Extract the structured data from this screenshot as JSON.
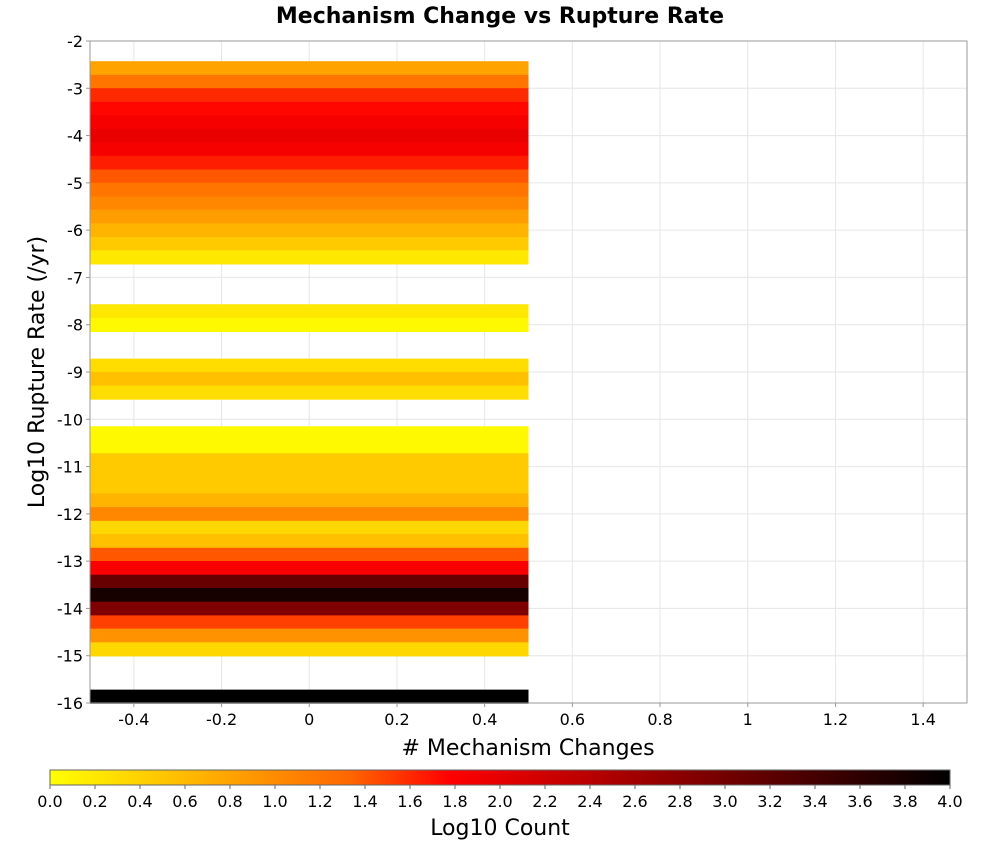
{
  "chart_data": {
    "type": "heatmap",
    "title": "Mechanism Change vs Rupture Rate",
    "xlabel": "# Mechanism Changes",
    "ylabel": "Log10 Rupture Rate (/yr)",
    "xlim": [
      -0.5,
      1.5
    ],
    "ylim": [
      -16,
      -2
    ],
    "x_ticks": [
      "-0.4",
      "-0.2",
      "0",
      "0.2",
      "0.4",
      "0.6",
      "0.8",
      "1",
      "1.2",
      "1.4"
    ],
    "y_ticks": [
      "-2",
      "-3",
      "-4",
      "-5",
      "-6",
      "-7",
      "-8",
      "-9",
      "-10",
      "-11",
      "-12",
      "-13",
      "-14",
      "-15",
      "-16"
    ],
    "grid": true,
    "colorbar": {
      "label": "Log10 Count",
      "range": [
        0,
        4
      ],
      "ticks": [
        "0.0",
        "0.2",
        "0.4",
        "0.6",
        "0.8",
        "1.0",
        "1.2",
        "1.4",
        "1.6",
        "1.8",
        "2.0",
        "2.2",
        "2.4",
        "2.6",
        "2.8",
        "3.0",
        "3.2",
        "3.4",
        "3.6",
        "3.8",
        "4.0"
      ],
      "colormap": [
        "#ffff00",
        "#ffcc00",
        "#ff9900",
        "#ff6600",
        "#ff0000",
        "#cc0000",
        "#990000",
        "#660000",
        "#330000",
        "#000000"
      ]
    },
    "cell_width": 1.0,
    "cell_height": 0.2857,
    "cells": [
      {
        "x": 0,
        "y": -2.57,
        "value": 0.8
      },
      {
        "x": 0,
        "y": -2.86,
        "value": 1.2
      },
      {
        "x": 0,
        "y": -3.14,
        "value": 1.6
      },
      {
        "x": 0,
        "y": -3.43,
        "value": 1.75
      },
      {
        "x": 0,
        "y": -3.71,
        "value": 1.85
      },
      {
        "x": 0,
        "y": -4.0,
        "value": 1.95
      },
      {
        "x": 0,
        "y": -4.29,
        "value": 1.85
      },
      {
        "x": 0,
        "y": -4.57,
        "value": 1.65
      },
      {
        "x": 0,
        "y": -4.86,
        "value": 1.4
      },
      {
        "x": 0,
        "y": -5.14,
        "value": 1.2
      },
      {
        "x": 0,
        "y": -5.43,
        "value": 1.05
      },
      {
        "x": 0,
        "y": -5.71,
        "value": 0.85
      },
      {
        "x": 0,
        "y": -6.0,
        "value": 0.65
      },
      {
        "x": 0,
        "y": -6.29,
        "value": 0.45
      },
      {
        "x": 0,
        "y": -6.57,
        "value": 0.2
      },
      {
        "x": 0,
        "y": -7.71,
        "value": 0.2
      },
      {
        "x": 0,
        "y": -8.0,
        "value": 0.05
      },
      {
        "x": 0,
        "y": -8.86,
        "value": 0.3
      },
      {
        "x": 0,
        "y": -9.14,
        "value": 0.55
      },
      {
        "x": 0,
        "y": -9.43,
        "value": 0.3
      },
      {
        "x": 0,
        "y": -10.29,
        "value": 0.05
      },
      {
        "x": 0,
        "y": -10.57,
        "value": 0.05
      },
      {
        "x": 0,
        "y": -10.86,
        "value": 0.45
      },
      {
        "x": 0,
        "y": -11.14,
        "value": 0.45
      },
      {
        "x": 0,
        "y": -11.43,
        "value": 0.45
      },
      {
        "x": 0,
        "y": -11.71,
        "value": 0.65
      },
      {
        "x": 0,
        "y": -12.0,
        "value": 1.05
      },
      {
        "x": 0,
        "y": -12.29,
        "value": 0.35
      },
      {
        "x": 0,
        "y": -12.57,
        "value": 0.55
      },
      {
        "x": 0,
        "y": -12.86,
        "value": 1.4
      },
      {
        "x": 0,
        "y": -13.14,
        "value": 1.8
      },
      {
        "x": 0,
        "y": -13.43,
        "value": 3.1
      },
      {
        "x": 0,
        "y": -13.71,
        "value": 3.8
      },
      {
        "x": 0,
        "y": -14.0,
        "value": 2.9
      },
      {
        "x": 0,
        "y": -14.29,
        "value": 1.5
      },
      {
        "x": 0,
        "y": -14.57,
        "value": 0.95
      },
      {
        "x": 0,
        "y": -14.86,
        "value": 0.35
      },
      {
        "x": 0,
        "y": -15.86,
        "value": 4.0
      }
    ]
  }
}
